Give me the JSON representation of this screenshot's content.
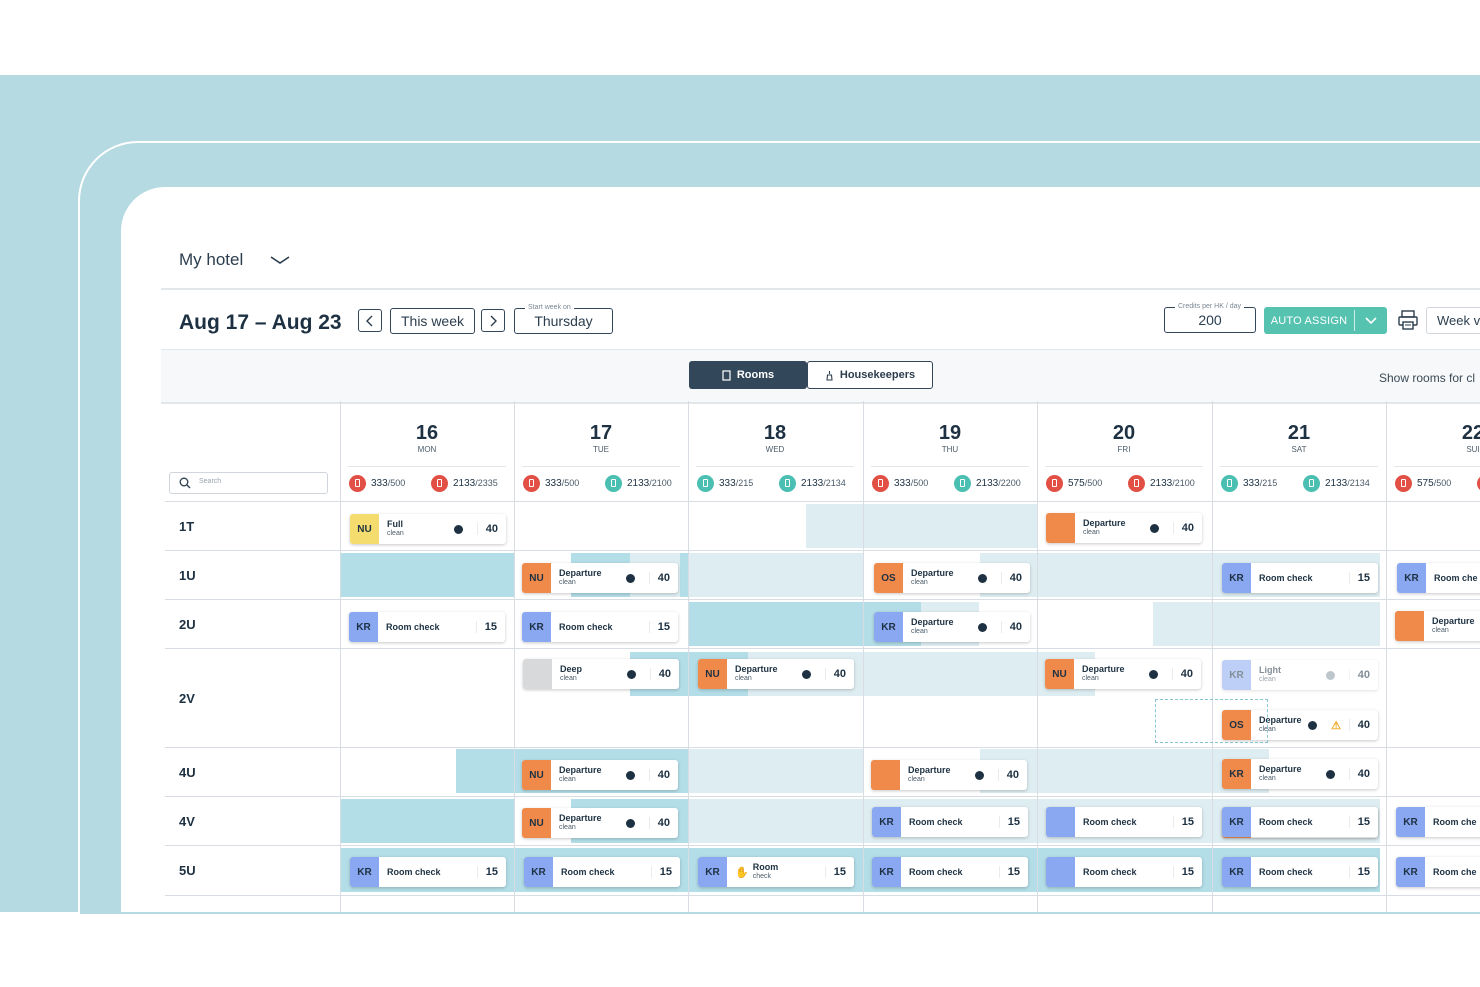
{
  "hotel": {
    "name": "My hotel"
  },
  "header": {
    "range": "Aug 17 – Aug 23",
    "this_week": "This week",
    "start_week_label": "Start week on",
    "start_week_value": "Thursday",
    "credits_label": "Credits per HK / day",
    "credits_value": "200",
    "auto_assign": "AUTO ASSIGN",
    "week_view": "Week vi"
  },
  "tabs": {
    "rooms": "Rooms",
    "housekeepers": "Housekeepers",
    "show_rooms": "Show rooms for cl"
  },
  "search": {
    "placeholder": "Search"
  },
  "days": [
    {
      "num": "16",
      "name": "MON",
      "s1": "333",
      "d1": "/500",
      "s2": "2133",
      "d2": "/2335",
      "c1": "red",
      "c2": "red"
    },
    {
      "num": "17",
      "name": "TUE",
      "s1": "333",
      "d1": "/500",
      "s2": "2133",
      "d2": "/2100",
      "c1": "red",
      "c2": "teal"
    },
    {
      "num": "18",
      "name": "WED",
      "s1": "333",
      "d1": "/215",
      "s2": "2133",
      "d2": "/2134",
      "c1": "teal",
      "c2": "teal"
    },
    {
      "num": "19",
      "name": "THU",
      "s1": "333",
      "d1": "/500",
      "s2": "2133",
      "d2": "/2200",
      "c1": "red",
      "c2": "teal"
    },
    {
      "num": "20",
      "name": "FRI",
      "s1": "575",
      "d1": "/500",
      "s2": "2133",
      "d2": "/2100",
      "c1": "red",
      "c2": "red"
    },
    {
      "num": "21",
      "name": "SAT",
      "s1": "333",
      "d1": "/215",
      "s2": "2133",
      "d2": "/2134",
      "c1": "teal",
      "c2": "teal"
    },
    {
      "num": "22",
      "name": "SUI",
      "s1": "575",
      "d1": "/500",
      "s2": "",
      "d2": "",
      "c1": "red",
      "c2": "red"
    }
  ],
  "rooms": [
    "1T",
    "1U",
    "2U",
    "2V",
    "4U",
    "4V",
    "5U"
  ],
  "events": [
    {
      "id": "e1",
      "tag": "NU",
      "tagclass": "tg-NUy",
      "label": "Full",
      "sub": "clean",
      "dot": true,
      "num": "40"
    },
    {
      "id": "e2",
      "tag": "",
      "tagclass": "tg-blank",
      "label": "Departure",
      "sub": "clean",
      "dot": true,
      "num": "40"
    },
    {
      "id": "e3",
      "tag": "NU",
      "tagclass": "tg-NU",
      "label": "Departure",
      "sub": "clean",
      "dot": true,
      "num": "40"
    },
    {
      "id": "e4",
      "tag": "OS",
      "tagclass": "tg-OS",
      "label": "Departure",
      "sub": "clean",
      "dot": true,
      "num": "40"
    },
    {
      "id": "e5",
      "tag": "KR",
      "tagclass": "tg-KR",
      "label": "Room check",
      "sub": "",
      "dot": false,
      "num": "15"
    },
    {
      "id": "e6",
      "tag": "KR",
      "tagclass": "tg-KR",
      "label": "Room che",
      "sub": "",
      "dot": false,
      "num": ""
    },
    {
      "id": "e7",
      "tag": "KR",
      "tagclass": "tg-KR",
      "label": "Room check",
      "sub": "",
      "dot": false,
      "num": "15"
    },
    {
      "id": "e8",
      "tag": "KR",
      "tagclass": "tg-KR",
      "label": "Room check",
      "sub": "",
      "dot": false,
      "num": "15"
    },
    {
      "id": "e9",
      "tag": "KR",
      "tagclass": "tg-KR",
      "label": "Departure",
      "sub": "clean",
      "dot": true,
      "num": "40"
    },
    {
      "id": "e10",
      "tag": "",
      "tagclass": "tg-blank",
      "label": "Departure",
      "sub": "clean",
      "dot": false,
      "num": ""
    },
    {
      "id": "e11",
      "tag": "",
      "tagclass": "tg-grey",
      "label": "Deep",
      "sub": "clean",
      "dot": true,
      "num": "40"
    },
    {
      "id": "e12",
      "tag": "NU",
      "tagclass": "tg-NU",
      "label": "Departure",
      "sub": "clean",
      "dot": true,
      "num": "40"
    },
    {
      "id": "e13",
      "tag": "NU",
      "tagclass": "tg-NU",
      "label": "Departure",
      "sub": "clean",
      "dot": true,
      "num": "40"
    },
    {
      "id": "e14",
      "tag": "KR",
      "tagclass": "tg-KR",
      "label": "Light",
      "sub": "clean",
      "dot": true,
      "num": "40"
    },
    {
      "id": "e15",
      "tag": "OS",
      "tagclass": "tg-OS",
      "label": "Departure",
      "sub": "clean",
      "dot": true,
      "num": "40"
    },
    {
      "id": "e16",
      "tag": "NU",
      "tagclass": "tg-NU",
      "label": "Departure",
      "sub": "clean",
      "dot": true,
      "num": "40"
    },
    {
      "id": "e17",
      "tag": "",
      "tagclass": "tg-blank",
      "label": "Departure",
      "sub": "clean",
      "dot": true,
      "num": "40"
    },
    {
      "id": "e18",
      "tag": "KR",
      "tagclass": "tg-OS",
      "label": "Departure",
      "sub": "clean",
      "dot": true,
      "num": "40"
    },
    {
      "id": "e19",
      "tag": "KR",
      "tagclass": "tg-OS",
      "label": "Departure",
      "sub": "clean",
      "dot": true,
      "num": "40"
    },
    {
      "id": "e20",
      "tag": "KR",
      "tagclass": "tg-KR",
      "label": "Room check",
      "sub": "",
      "dot": false,
      "num": "15"
    },
    {
      "id": "e21",
      "tag": "",
      "tagclass": "tg-blue",
      "label": "Room check",
      "sub": "",
      "dot": false,
      "num": "15"
    },
    {
      "id": "e22",
      "tag": "KR",
      "tagclass": "tg-KR",
      "label": "Room check",
      "sub": "",
      "dot": false,
      "num": "15"
    },
    {
      "id": "e23",
      "tag": "KR",
      "tagclass": "tg-KR",
      "label": "Room che",
      "sub": "",
      "dot": false,
      "num": ""
    },
    {
      "id": "e24",
      "tag": "KR",
      "tagclass": "tg-KR",
      "label": "Room check",
      "sub": "",
      "dot": false,
      "num": "15"
    },
    {
      "id": "e25",
      "tag": "KR",
      "tagclass": "tg-KR",
      "label": "Room check",
      "sub": "",
      "dot": false,
      "num": "15"
    },
    {
      "id": "e26",
      "tag": "KR",
      "tagclass": "tg-KR",
      "label": "Room",
      "sub": "check",
      "dot": false,
      "num": "15"
    },
    {
      "id": "e27",
      "tag": "KR",
      "tagclass": "tg-KR",
      "label": "Room check",
      "sub": "",
      "dot": false,
      "num": "15"
    },
    {
      "id": "e28",
      "tag": "",
      "tagclass": "tg-blue",
      "label": "Room check",
      "sub": "",
      "dot": false,
      "num": "15"
    },
    {
      "id": "e29",
      "tag": "KR",
      "tagclass": "tg-KR",
      "label": "Room check",
      "sub": "",
      "dot": false,
      "num": "15"
    },
    {
      "id": "e30",
      "tag": "KR",
      "tagclass": "tg-KR",
      "label": "Room che",
      "sub": "",
      "dot": false,
      "num": ""
    },
    {
      "id": "e31",
      "tag": "NU",
      "tagclass": "tg-NU",
      "label": "Departure",
      "sub": "clean",
      "dot": true,
      "num": "40"
    },
    {
      "id": "e32",
      "tag": "KR",
      "tagclass": "tg-OS",
      "label": "Departure",
      "sub": "clean",
      "dot": true,
      "num": "40"
    },
    {
      "id": "e33",
      "tag": "KR",
      "tagclass": "tg-KR",
      "label": "Room check",
      "sub": "",
      "dot": false,
      "num": "15"
    },
    {
      "id": "e34",
      "tag": "KR",
      "tagclass": "tg-KR",
      "label": "Room check",
      "sub": "",
      "dot": false,
      "num": "15"
    }
  ],
  "colors": {
    "accent": "#56c2b0",
    "band": "#b6dae2",
    "dark": "#33475a",
    "red": "#e14f45",
    "teal": "#4bbfb1"
  }
}
